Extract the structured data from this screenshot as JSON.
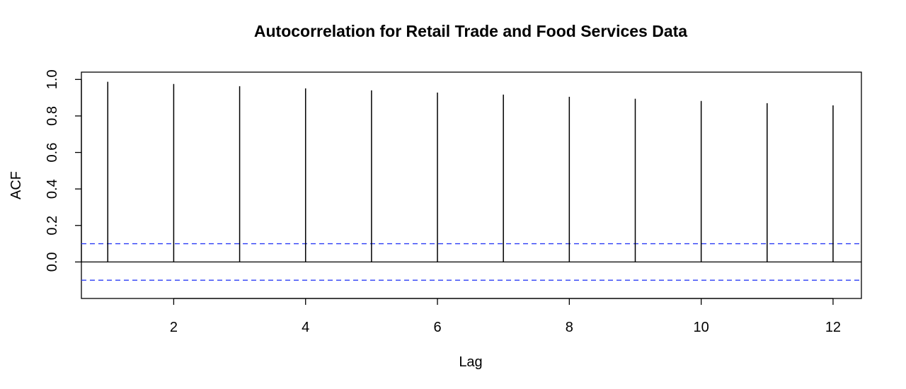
{
  "chart_data": {
    "type": "bar",
    "title": "Autocorrelation for Retail Trade and Food Services Data",
    "xlabel": "Lag",
    "ylabel": "ACF",
    "x": [
      1,
      2,
      3,
      4,
      5,
      6,
      7,
      8,
      9,
      10,
      11,
      12
    ],
    "values": [
      0.987,
      0.975,
      0.963,
      0.951,
      0.94,
      0.928,
      0.917,
      0.905,
      0.894,
      0.882,
      0.87,
      0.858
    ],
    "xlim": [
      0.6,
      12.43
    ],
    "ylim": [
      -0.2,
      1.04
    ],
    "x_ticks": [
      2,
      4,
      6,
      8,
      10,
      12
    ],
    "x_tick_labels": [
      "2",
      "4",
      "6",
      "8",
      "10",
      "12"
    ],
    "y_ticks": [
      0.0,
      0.2,
      0.4,
      0.6,
      0.8,
      1.0
    ],
    "y_tick_labels": [
      "0.0",
      "0.2",
      "0.4",
      "0.6",
      "0.8",
      "1.0"
    ],
    "confidence_band": [
      -0.1,
      0.1
    ],
    "zero_line": 0,
    "grid": false,
    "legend": "none",
    "colors": {
      "spikes": "#000000",
      "confidence_band": "#2b3cf5",
      "axes": "#000000"
    }
  }
}
